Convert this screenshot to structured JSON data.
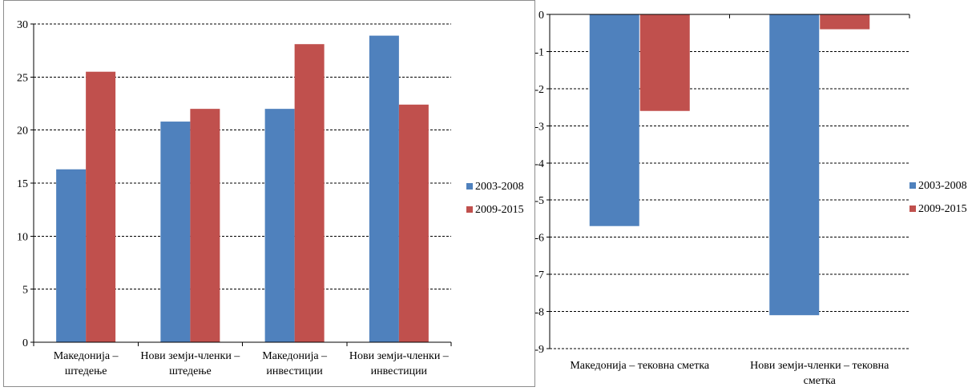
{
  "chart_data": [
    {
      "type": "bar",
      "categories": [
        [
          "Македонија –",
          "штедење"
        ],
        [
          "Нови земји-членки –",
          "штедење"
        ],
        [
          "Македонија –",
          "инвестиции"
        ],
        [
          "Нови земји-членки –",
          "инвестиции"
        ]
      ],
      "series": [
        {
          "name": "2003-2008",
          "color": "#4f81bd",
          "values": [
            16.3,
            20.8,
            22.0,
            28.9
          ]
        },
        {
          "name": "2009-2015",
          "color": "#c0504d",
          "values": [
            25.5,
            22.0,
            28.1,
            22.4
          ]
        }
      ],
      "ylim": [
        0,
        30
      ],
      "yticks": [
        0,
        5,
        10,
        15,
        20,
        25,
        30
      ],
      "grid": true,
      "legend": "right"
    },
    {
      "type": "bar",
      "categories": [
        [
          "Македонија – тековна сметка"
        ],
        [
          "Нови земји-членки – тековна",
          "сметка"
        ]
      ],
      "series": [
        {
          "name": "2003-2008",
          "color": "#4f81bd",
          "values": [
            -5.7,
            -8.1
          ]
        },
        {
          "name": "2009-2015",
          "color": "#c0504d",
          "values": [
            -2.6,
            -0.4
          ]
        }
      ],
      "ylim": [
        -9,
        0
      ],
      "yticks": [
        0,
        -1,
        -2,
        -3,
        -4,
        -5,
        -6,
        -7,
        -8,
        -9
      ],
      "grid": true,
      "legend": "right"
    }
  ]
}
